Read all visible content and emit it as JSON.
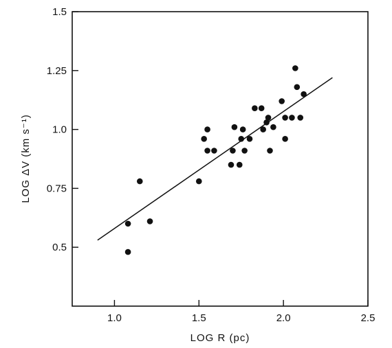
{
  "chart_data": {
    "type": "scatter",
    "title": "",
    "xlabel": "LOG R (pc)",
    "ylabel": "LOG ΔV (km s⁻¹)",
    "xlim": [
      0.75,
      2.5
    ],
    "ylim": [
      0.25,
      1.5
    ],
    "x_ticks": [
      {
        "value": 1.0,
        "label": "1.0"
      },
      {
        "value": 1.5,
        "label": "1.5"
      },
      {
        "value": 2.0,
        "label": "2.0"
      },
      {
        "value": 2.5,
        "label": "2.5"
      }
    ],
    "y_ticks": [
      {
        "value": 0.5,
        "label": "0.5"
      },
      {
        "value": 0.75,
        "label": "0.75"
      },
      {
        "value": 1.0,
        "label": "1.0"
      },
      {
        "value": 1.25,
        "label": "1.25"
      },
      {
        "value": 1.5,
        "label": "1.5"
      }
    ],
    "grid": false,
    "series": [
      {
        "points": [
          {
            "x": 1.08,
            "y": 0.6
          },
          {
            "x": 1.08,
            "y": 0.48
          },
          {
            "x": 1.15,
            "y": 0.78
          },
          {
            "x": 1.21,
            "y": 0.61
          },
          {
            "x": 1.5,
            "y": 0.78
          },
          {
            "x": 1.53,
            "y": 0.96
          },
          {
            "x": 1.55,
            "y": 1.0
          },
          {
            "x": 1.55,
            "y": 0.91
          },
          {
            "x": 1.59,
            "y": 0.91
          },
          {
            "x": 1.69,
            "y": 0.85
          },
          {
            "x": 1.7,
            "y": 0.91
          },
          {
            "x": 1.71,
            "y": 1.01
          },
          {
            "x": 1.74,
            "y": 0.85
          },
          {
            "x": 1.75,
            "y": 0.96
          },
          {
            "x": 1.76,
            "y": 1.0
          },
          {
            "x": 1.77,
            "y": 0.91
          },
          {
            "x": 1.8,
            "y": 0.96
          },
          {
            "x": 1.83,
            "y": 1.09
          },
          {
            "x": 1.87,
            "y": 1.09
          },
          {
            "x": 1.88,
            "y": 1.0
          },
          {
            "x": 1.9,
            "y": 1.03
          },
          {
            "x": 1.91,
            "y": 1.05
          },
          {
            "x": 1.92,
            "y": 0.91
          },
          {
            "x": 1.94,
            "y": 1.01
          },
          {
            "x": 1.99,
            "y": 1.12
          },
          {
            "x": 2.01,
            "y": 1.05
          },
          {
            "x": 2.01,
            "y": 0.96
          },
          {
            "x": 2.05,
            "y": 1.05
          },
          {
            "x": 2.07,
            "y": 1.26
          },
          {
            "x": 2.08,
            "y": 1.18
          },
          {
            "x": 2.1,
            "y": 1.05
          },
          {
            "x": 2.12,
            "y": 1.15
          }
        ]
      }
    ],
    "fit_line": {
      "x": [
        0.9,
        2.29
      ],
      "y": [
        0.53,
        1.22
      ]
    }
  }
}
